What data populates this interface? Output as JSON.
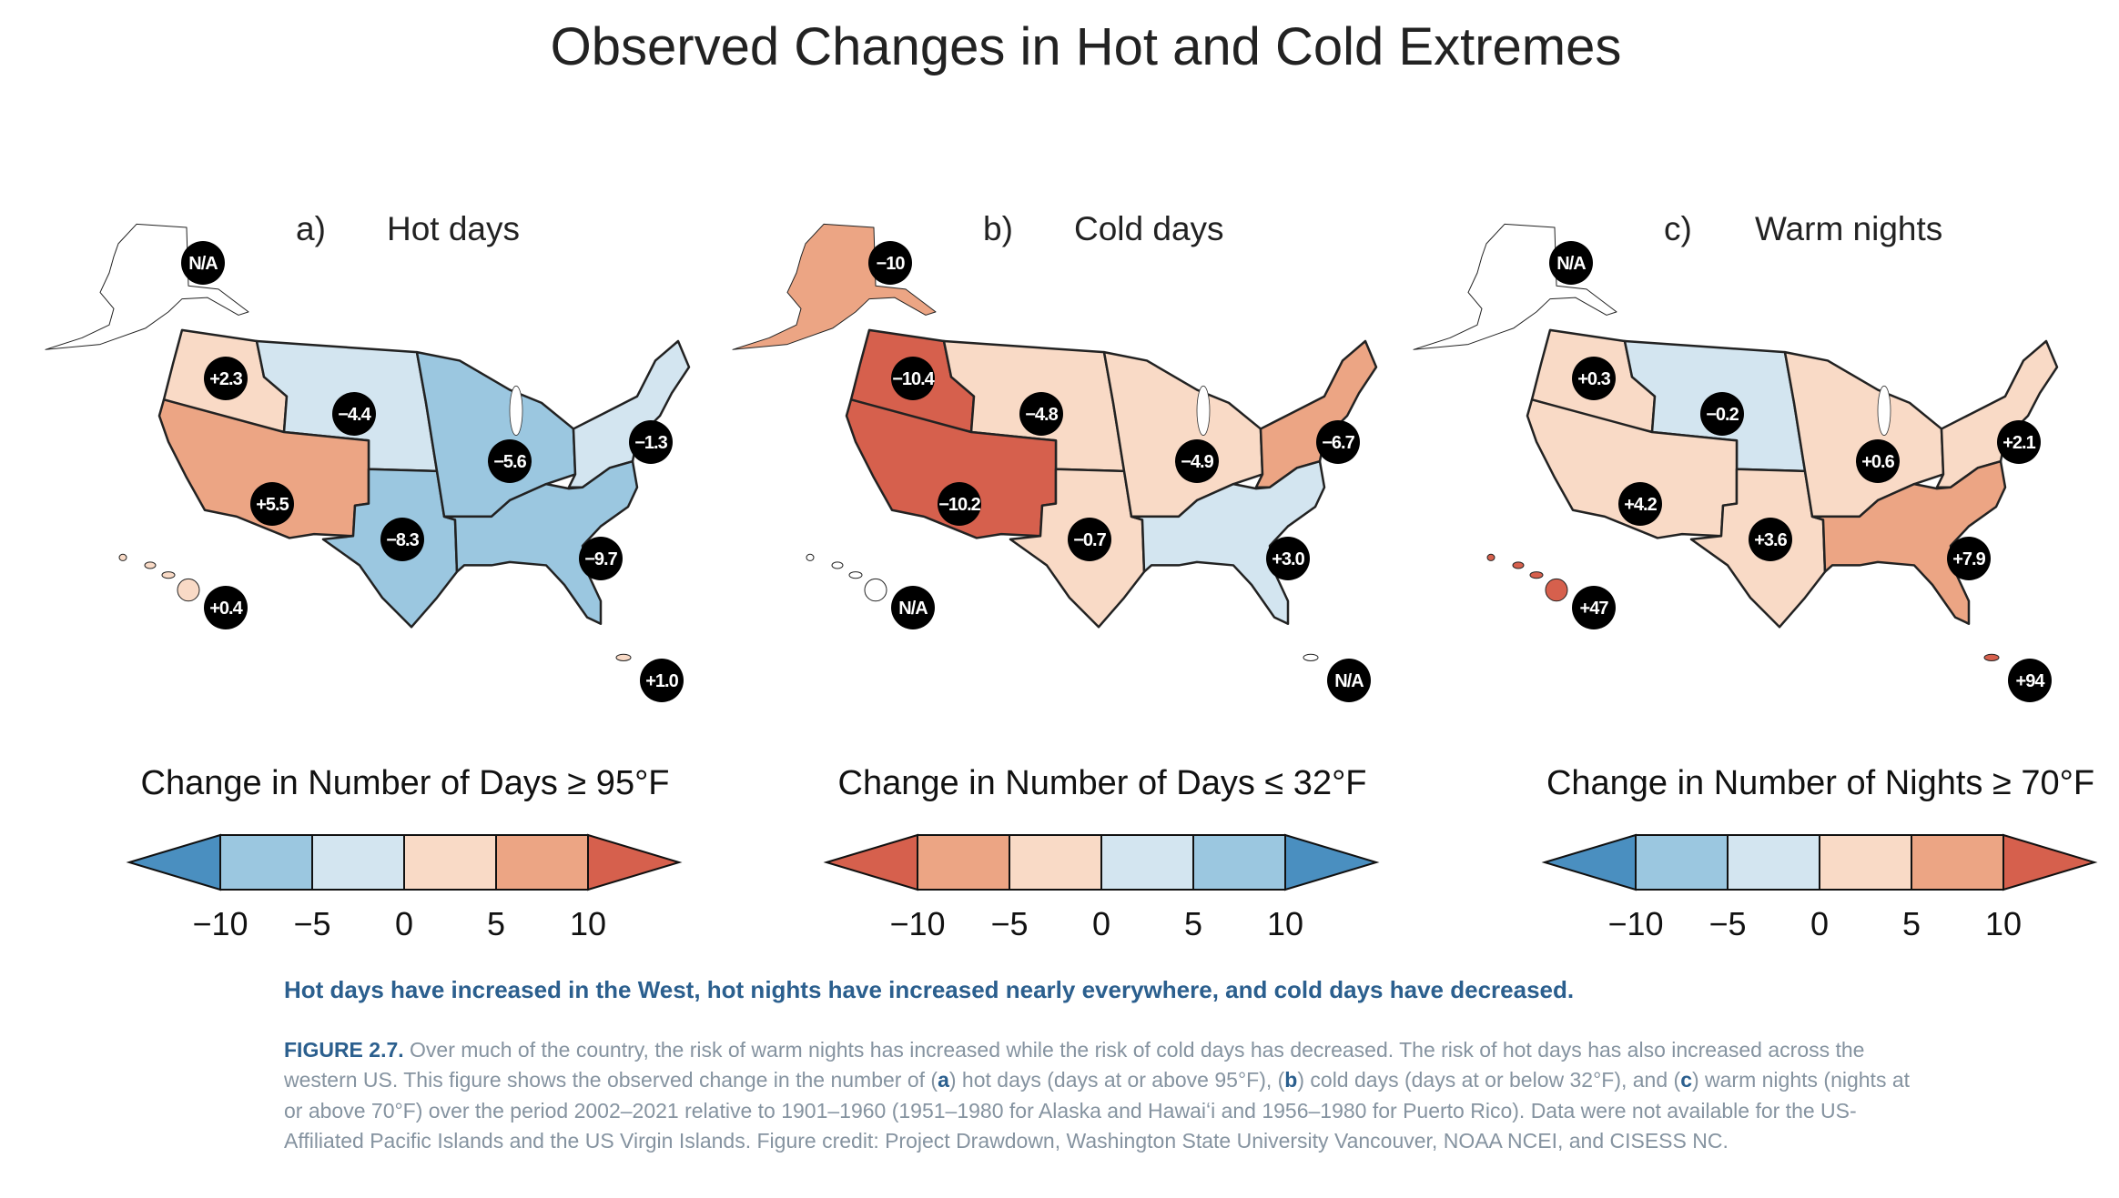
{
  "title": "Observed Changes in Hot and Cold Extremes",
  "colors": {
    "dark_blue": "#4a8fc0",
    "mid_blue": "#9bc7e0",
    "light_blue": "#d3e5f0",
    "light_orange": "#f9dac6",
    "orange": "#eca584",
    "red": "#d6604d",
    "none": "#ffffff"
  },
  "panels": [
    {
      "letter": "a)",
      "name": "Hot days",
      "regions": {
        "alaska": {
          "label": "N/A",
          "color": "#ffffff"
        },
        "northwest": {
          "label": "+2.3",
          "color": "#f9dac6"
        },
        "northern_great_plains": {
          "label": "−4.4",
          "color": "#d3e5f0"
        },
        "midwest": {
          "label": "−5.6",
          "color": "#9bc7e0"
        },
        "northeast": {
          "label": "−1.3",
          "color": "#d3e5f0"
        },
        "southwest": {
          "label": "+5.5",
          "color": "#eca584"
        },
        "southern_great_plains": {
          "label": "−8.3",
          "color": "#9bc7e0"
        },
        "southeast": {
          "label": "−9.7",
          "color": "#9bc7e0"
        },
        "hawaii": {
          "label": "+0.4",
          "color": "#f9dac6"
        },
        "puerto_rico": {
          "label": "+1.0",
          "color": "#f9dac6"
        }
      },
      "legend": {
        "title": "Change in Number of Days ≥ 95°F",
        "ticks": [
          "−10",
          "−5",
          "0",
          "5",
          "10"
        ],
        "colors": [
          "#4a8fc0",
          "#9bc7e0",
          "#d3e5f0",
          "#f9dac6",
          "#eca584",
          "#d6604d"
        ]
      }
    },
    {
      "letter": "b)",
      "name": "Cold days",
      "regions": {
        "alaska": {
          "label": "−10",
          "color": "#eca584"
        },
        "northwest": {
          "label": "−10.4",
          "color": "#d6604d"
        },
        "northern_great_plains": {
          "label": "−4.8",
          "color": "#f9dac6"
        },
        "midwest": {
          "label": "−4.9",
          "color": "#f9dac6"
        },
        "northeast": {
          "label": "−6.7",
          "color": "#eca584"
        },
        "southwest": {
          "label": "−10.2",
          "color": "#d6604d"
        },
        "southern_great_plains": {
          "label": "−0.7",
          "color": "#f9dac6"
        },
        "southeast": {
          "label": "+3.0",
          "color": "#d3e5f0"
        },
        "hawaii": {
          "label": "N/A",
          "color": "#ffffff"
        },
        "puerto_rico": {
          "label": "N/A",
          "color": "#ffffff"
        }
      },
      "legend": {
        "title": "Change in Number of Days ≤ 32°F",
        "ticks": [
          "−10",
          "−5",
          "0",
          "5",
          "10"
        ],
        "colors": [
          "#d6604d",
          "#eca584",
          "#f9dac6",
          "#d3e5f0",
          "#9bc7e0",
          "#4a8fc0"
        ]
      }
    },
    {
      "letter": "c)",
      "name": "Warm nights",
      "regions": {
        "alaska": {
          "label": "N/A",
          "color": "#ffffff"
        },
        "northwest": {
          "label": "+0.3",
          "color": "#f9dac6"
        },
        "northern_great_plains": {
          "label": "−0.2",
          "color": "#d3e5f0"
        },
        "midwest": {
          "label": "+0.6",
          "color": "#f9dac6"
        },
        "northeast": {
          "label": "+2.1",
          "color": "#f9dac6"
        },
        "southwest": {
          "label": "+4.2",
          "color": "#f9dac6"
        },
        "southern_great_plains": {
          "label": "+3.6",
          "color": "#f9dac6"
        },
        "southeast": {
          "label": "+7.9",
          "color": "#eca584"
        },
        "hawaii": {
          "label": "+47",
          "color": "#d6604d"
        },
        "puerto_rico": {
          "label": "+94",
          "color": "#d6604d"
        }
      },
      "legend": {
        "title": "Change in Number of Nights ≥ 70°F",
        "ticks": [
          "−10",
          "−5",
          "0",
          "5",
          "10"
        ],
        "colors": [
          "#4a8fc0",
          "#9bc7e0",
          "#d3e5f0",
          "#f9dac6",
          "#eca584",
          "#d6604d"
        ]
      }
    }
  ],
  "headline": "Hot days have increased in the West, hot nights have increased nearly everywhere, and cold days have decreased.",
  "caption": {
    "figure_label": "FIGURE 2.7.",
    "t1": " Over much of the country, the risk of warm nights has increased while the risk of cold days has decreased. The risk of hot days has also increased across the western US. This figure shows the observed change in the number of (",
    "a": "a",
    "t2": ") hot days (days at or above 95°F), (",
    "b": "b",
    "t3": ") cold days (days at or below 32°F), and (",
    "c": "c",
    "t4": ") warm nights (nights at or above 70°F) over the period 2002–2021 relative to 1901–1960 (1951–1980 for Alaska and Hawaiʻi and 1956–1980 for Puerto Rico). Data were not available for the US-Affiliated Pacific Islands and the US Virgin Islands. Figure credit: Project Drawdown, Washington State University Vancouver, NOAA NCEI, and CISESS NC."
  }
}
